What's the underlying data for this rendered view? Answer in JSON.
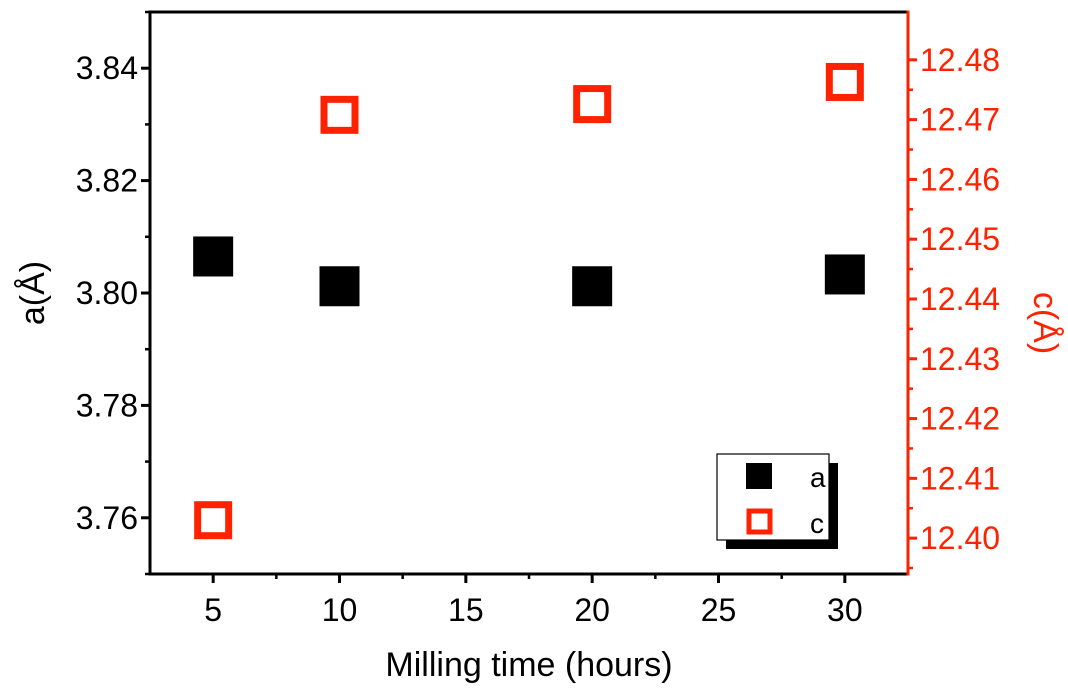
{
  "chart_data": {
    "type": "scatter",
    "xlabel": "Milling time (hours)",
    "ylabel": "a(Å)",
    "y2label": "c(Å)",
    "xlim": [
      2.5,
      32.5
    ],
    "ylim": [
      3.75,
      3.85
    ],
    "y2lim": [
      12.394,
      12.488
    ],
    "x_ticks": [
      5,
      10,
      15,
      20,
      25,
      30
    ],
    "y_ticks": [
      3.76,
      3.78,
      3.8,
      3.82,
      3.84
    ],
    "y2_ticks": [
      12.4,
      12.41,
      12.42,
      12.43,
      12.44,
      12.45,
      12.46,
      12.47,
      12.48
    ],
    "legend_position": "bottom-right",
    "series": [
      {
        "name": "a",
        "axis": "left",
        "marker": "filled-square",
        "color": "#000000",
        "x": [
          5,
          10,
          20,
          30
        ],
        "y": [
          3.8065,
          3.8012,
          3.8012,
          3.8033
        ]
      },
      {
        "name": "c",
        "axis": "right",
        "marker": "open-square",
        "color": "#ff2200",
        "x": [
          5,
          10,
          20,
          30
        ],
        "y": [
          12.403,
          12.4708,
          12.4726,
          12.4763
        ]
      }
    ]
  }
}
